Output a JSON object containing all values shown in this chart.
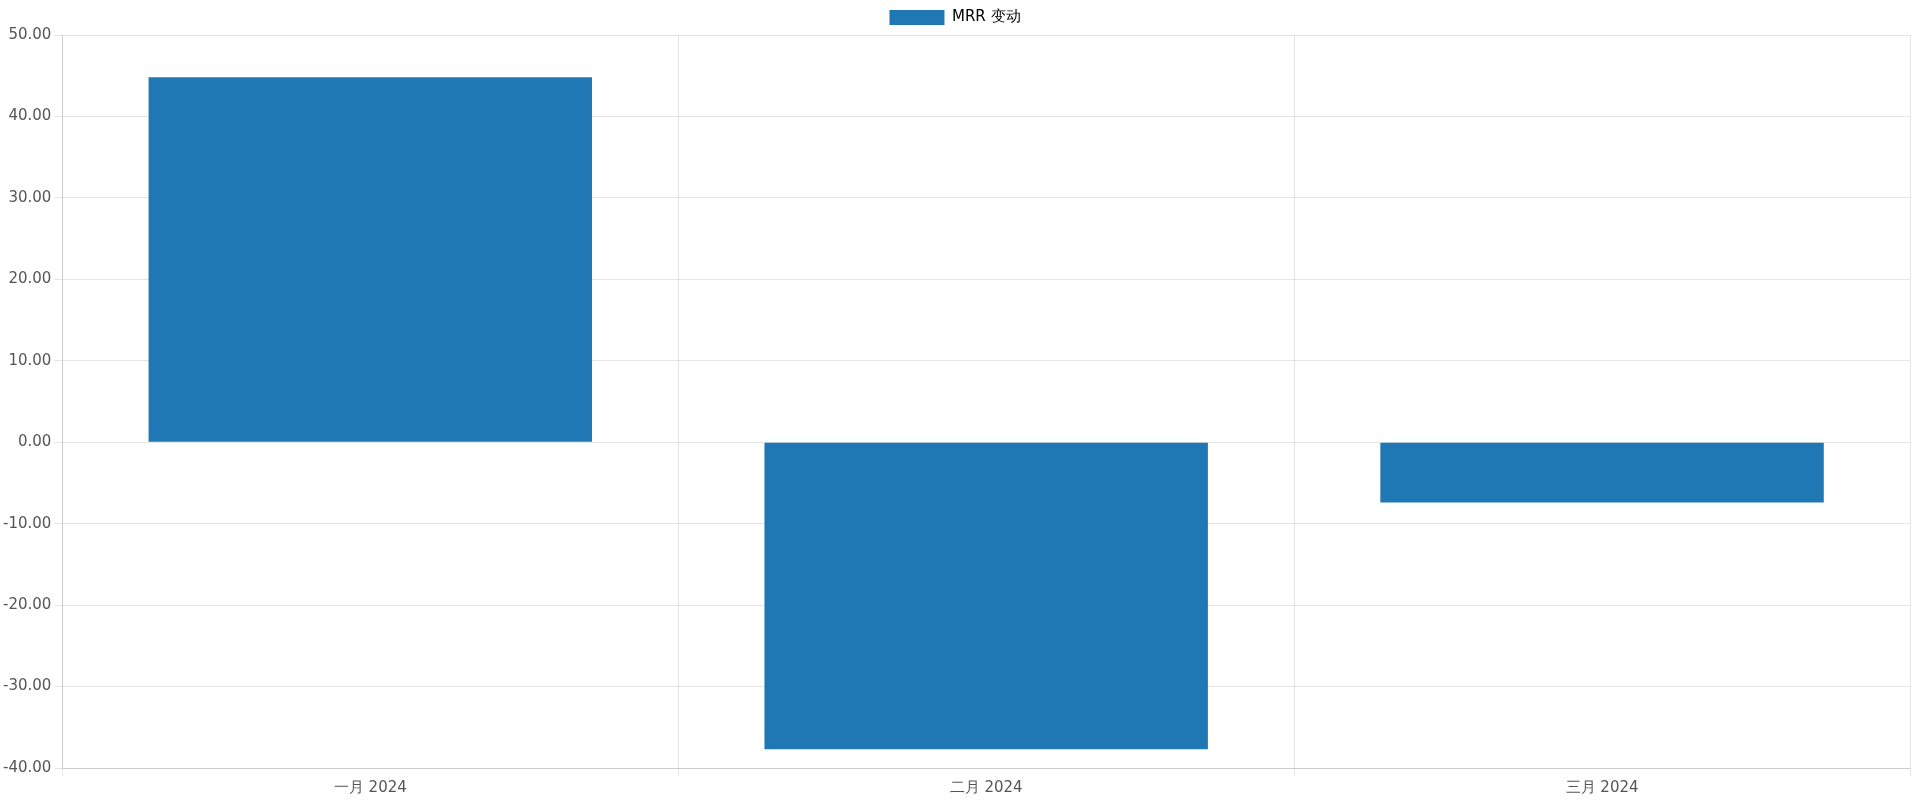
{
  "chart_data": {
    "type": "bar",
    "categories": [
      "一月 2024",
      "二月 2024",
      "三月 2024"
    ],
    "series": [
      {
        "name": "MRR 变动",
        "color": "#1f77b4",
        "values": [
          44.8,
          -37.7,
          -7.4
        ]
      }
    ],
    "ylim": [
      -40,
      50
    ],
    "yticks": [
      {
        "value": -40,
        "label": "-40.00"
      },
      {
        "value": -30,
        "label": "-30.00"
      },
      {
        "value": -20,
        "label": "-20.00"
      },
      {
        "value": -10,
        "label": "-10.00"
      },
      {
        "value": 0,
        "label": "0.00"
      },
      {
        "value": 10,
        "label": "10.00"
      },
      {
        "value": 20,
        "label": "20.00"
      },
      {
        "value": 30,
        "label": "30.00"
      },
      {
        "value": 40,
        "label": "40.00"
      },
      {
        "value": 50,
        "label": "50.00"
      }
    ],
    "grid": true,
    "legend": "top"
  }
}
